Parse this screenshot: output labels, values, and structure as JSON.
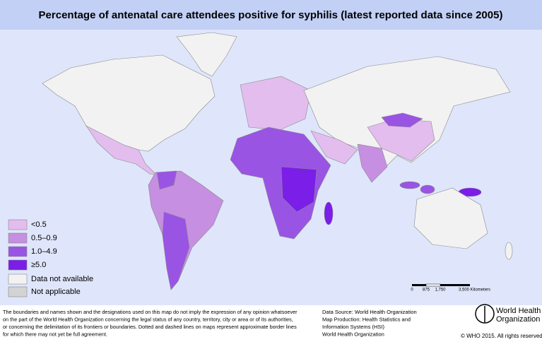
{
  "title": "Percentage of antenatal care attendees positive for syphilis (latest reported data since 2005)",
  "legend": [
    {
      "label": "<0.5",
      "color": "#e3bdee"
    },
    {
      "label": "0.5–0.9",
      "color": "#c68fe2"
    },
    {
      "label": "1.0–4.9",
      "color": "#9a54e4"
    },
    {
      "label": "≥5.0",
      "color": "#7a1ee8"
    },
    {
      "label": "Data not available",
      "color": "#f2f2f2"
    },
    {
      "label": "Not applicable",
      "color": "#d3d3d3"
    }
  ],
  "scale_labels": [
    "0",
    "875",
    "1,750",
    "3,500 Kilometers"
  ],
  "disclaimer": [
    "The boundaries and names shown and the designations used on this map do not imply the expression of any opinion whatsoever",
    "on the part of the World Health Organization concerning the legal status of any country, territory, city or area or of its authorities,",
    "or concerning the delimitation of its frontiers or boundaries. Dotted and dashed lines on maps represent approximate border lines",
    "for which there may not yet be full agreement."
  ],
  "source": [
    "Data Source: World Health Organization",
    "Map Production: Health Statistics and",
    "Information Systems (HSI)",
    "World Health Organization"
  ],
  "logo": [
    "World Health",
    "Organization"
  ],
  "copyright": "© WHO 2015. All rights reserved."
}
